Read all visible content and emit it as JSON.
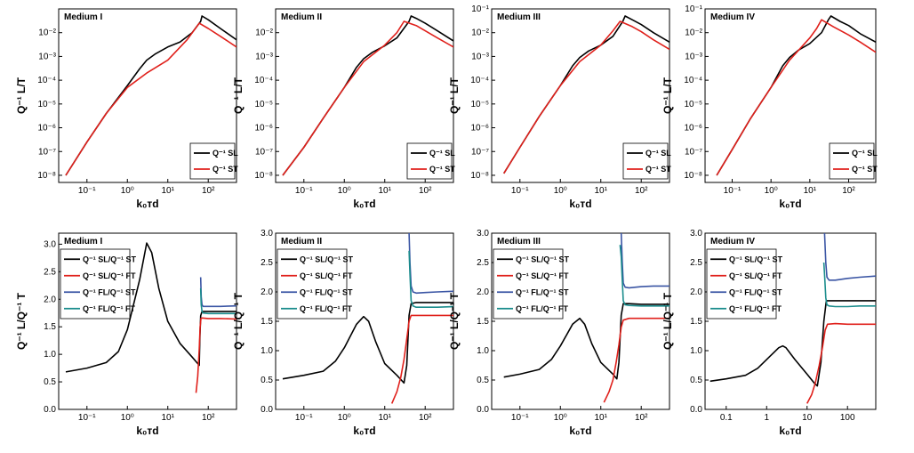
{
  "colors": {
    "black": "#000000",
    "red": "#e0201b",
    "blue": "#3a55a4",
    "teal": "#1a8c8c"
  },
  "chart_data": [
    {
      "type": "line",
      "title": "Medium I",
      "xlabel": "k₀ᴛd",
      "ylabel": "Q⁻¹ L/T",
      "xscale": "log",
      "yscale": "log",
      "xlim": [
        0.02,
        500
      ],
      "ylim": [
        5e-09,
        0.1
      ],
      "xticks": [
        "10⁻¹",
        "10⁰",
        "10¹",
        "10²"
      ],
      "yticks": [
        "10⁻⁸",
        "10⁻⁷",
        "10⁻⁶",
        "10⁻⁵",
        "10⁻⁴",
        "10⁻³",
        "10⁻²"
      ],
      "legend": {
        "position": "bottom-right",
        "labels": [
          "Q⁻¹ SL",
          "Q⁻¹ ST"
        ]
      },
      "series": [
        {
          "name": "Q⁻¹ SL",
          "color": "black",
          "x": [
            0.03,
            0.1,
            0.3,
            1,
            2,
            3,
            5,
            10,
            20,
            40,
            65,
            70,
            100,
            200,
            500
          ],
          "y": [
            1e-08,
            2.5e-07,
            4e-06,
            6e-05,
            0.0003,
            0.0007,
            0.0013,
            0.0025,
            0.004,
            0.01,
            0.03,
            0.05,
            0.035,
            0.015,
            0.005
          ]
        },
        {
          "name": "Q⁻¹ ST",
          "color": "red",
          "x": [
            0.03,
            0.1,
            0.3,
            1,
            3,
            10,
            30,
            60,
            100,
            200,
            500
          ],
          "y": [
            1e-08,
            2.5e-07,
            4e-06,
            5e-05,
            0.0002,
            0.0007,
            0.005,
            0.025,
            0.015,
            0.007,
            0.0025
          ]
        }
      ]
    },
    {
      "type": "line",
      "title": "Medium II",
      "xlabel": "k₀ᴛd",
      "ylabel": "Q⁻¹ L/T",
      "xscale": "log",
      "yscale": "log",
      "xlim": [
        0.02,
        500
      ],
      "ylim": [
        5e-09,
        0.1
      ],
      "xticks": [
        "10⁻¹",
        "10⁰",
        "10¹",
        "10²"
      ],
      "yticks": [
        "10⁻⁸",
        "10⁻⁷",
        "10⁻⁶",
        "10⁻⁵",
        "10⁻⁴",
        "10⁻³",
        "10⁻²"
      ],
      "legend": {
        "position": "bottom-right",
        "labels": [
          "Q⁻¹ SL",
          "Q⁻¹ ST"
        ]
      },
      "series": [
        {
          "name": "Q⁻¹ SL",
          "color": "black",
          "x": [
            0.03,
            0.1,
            0.3,
            1,
            2,
            3,
            5,
            10,
            20,
            40,
            45,
            60,
            100,
            200,
            500
          ],
          "y": [
            1e-08,
            1.5e-07,
            2.5e-06,
            5e-05,
            0.00035,
            0.0008,
            0.0015,
            0.0028,
            0.006,
            0.03,
            0.05,
            0.04,
            0.025,
            0.012,
            0.0045
          ]
        },
        {
          "name": "Q⁻¹ ST",
          "color": "red",
          "x": [
            0.03,
            0.1,
            0.3,
            1,
            3,
            10,
            20,
            30,
            60,
            100,
            200,
            500
          ],
          "y": [
            1e-08,
            1.5e-07,
            2.5e-06,
            5e-05,
            0.0006,
            0.003,
            0.01,
            0.03,
            0.02,
            0.012,
            0.006,
            0.0025
          ]
        }
      ]
    },
    {
      "type": "line",
      "title": "Medium III",
      "xlabel": "k₀ᴛd",
      "ylabel": "Q⁻¹ L/T",
      "xscale": "log",
      "yscale": "log",
      "xlim": [
        0.02,
        500
      ],
      "ylim": [
        5e-09,
        0.1
      ],
      "xticks": [
        "10⁻¹",
        "10⁰",
        "10¹",
        "10²"
      ],
      "yticks": [
        "10⁻⁸",
        "10⁻⁷",
        "10⁻⁶",
        "10⁻⁵",
        "10⁻⁴",
        "10⁻³",
        "10⁻²",
        "10⁻¹"
      ],
      "legend": {
        "position": "bottom-right",
        "labels": [
          "Q⁻¹ SL",
          "Q⁻¹ ST"
        ]
      },
      "series": [
        {
          "name": "Q⁻¹ SL",
          "color": "black",
          "x": [
            0.04,
            0.1,
            0.3,
            1,
            2,
            3,
            5,
            10,
            20,
            35,
            40,
            60,
            100,
            200,
            500
          ],
          "y": [
            1.2e-08,
            1.5e-07,
            3e-06,
            6e-05,
            0.0004,
            0.0009,
            0.0017,
            0.003,
            0.007,
            0.03,
            0.05,
            0.035,
            0.022,
            0.01,
            0.004
          ]
        },
        {
          "name": "Q⁻¹ ST",
          "color": "red",
          "x": [
            0.04,
            0.1,
            0.3,
            1,
            3,
            10,
            20,
            30,
            60,
            100,
            200,
            500
          ],
          "y": [
            1.2e-08,
            1.5e-07,
            3e-06,
            6e-05,
            0.0006,
            0.003,
            0.012,
            0.03,
            0.018,
            0.011,
            0.005,
            0.002
          ]
        }
      ]
    },
    {
      "type": "line",
      "title": "Medium IV",
      "xlabel": "k₀ᴛd",
      "ylabel": "Q⁻¹ L/T",
      "xscale": "log",
      "yscale": "log",
      "xlim": [
        0.02,
        500
      ],
      "ylim": [
        5e-09,
        0.1
      ],
      "xticks": [
        "10⁻¹",
        "10⁰",
        "10¹",
        "10²"
      ],
      "yticks": [
        "10⁻⁸",
        "10⁻⁷",
        "10⁻⁶",
        "10⁻⁵",
        "10⁻⁴",
        "10⁻³",
        "10⁻²",
        "10⁻¹"
      ],
      "legend": {
        "position": "bottom-right",
        "labels": [
          "Q⁻¹ SL",
          "Q⁻¹ ST"
        ]
      },
      "series": [
        {
          "name": "Q⁻¹ SL",
          "color": "black",
          "x": [
            0.04,
            0.1,
            0.3,
            1,
            2,
            3,
            5,
            10,
            20,
            30,
            35,
            60,
            100,
            200,
            500
          ],
          "y": [
            1e-08,
            1.2e-07,
            2.5e-06,
            5e-05,
            0.0004,
            0.0009,
            0.0018,
            0.0035,
            0.01,
            0.035,
            0.05,
            0.03,
            0.02,
            0.009,
            0.004
          ]
        },
        {
          "name": "Q⁻¹ ST",
          "color": "red",
          "x": [
            0.04,
            0.1,
            0.3,
            1,
            3,
            10,
            15,
            20,
            40,
            100,
            200,
            500
          ],
          "y": [
            1e-08,
            1.2e-07,
            2.5e-06,
            5e-05,
            0.0007,
            0.006,
            0.015,
            0.035,
            0.018,
            0.008,
            0.004,
            0.0015
          ]
        }
      ]
    },
    {
      "type": "line",
      "title": "Medium I",
      "xlabel": "k₀ᴛd",
      "ylabel": "Q⁻¹ L/Q⁻¹ T",
      "xscale": "log",
      "xlim": [
        0.02,
        500
      ],
      "ylim": [
        0,
        3.2
      ],
      "xticks": [
        "10⁻¹",
        "10⁰",
        "10¹",
        "10²"
      ],
      "yticks": [
        "0.0",
        "0.5",
        "1.0",
        "1.5",
        "2.0",
        "2.5",
        "3.0"
      ],
      "legend": {
        "position": "top-left",
        "labels": [
          "Q⁻¹ SL/Q⁻¹ ST",
          "Q⁻¹ SL/Q⁻¹ FT",
          "Q⁻¹ FL/Q⁻¹ ST",
          "Q⁻¹ FL/Q⁻¹ FT"
        ]
      },
      "series": [
        {
          "name": "Q⁻¹ SL/Q⁻¹ ST",
          "color": "black",
          "x": [
            0.03,
            0.1,
            0.3,
            0.6,
            1,
            2,
            3,
            4,
            6,
            10,
            20,
            40,
            60,
            62,
            65,
            70,
            100,
            200,
            500
          ],
          "y": [
            0.68,
            0.75,
            0.85,
            1.05,
            1.45,
            2.35,
            3.02,
            2.85,
            2.2,
            1.6,
            1.2,
            0.95,
            0.8,
            1.3,
            1.7,
            1.78,
            1.78,
            1.78,
            1.78
          ]
        },
        {
          "name": "Q⁻¹ SL/Q⁻¹ FT",
          "color": "red",
          "x": [
            50,
            55,
            60,
            63,
            66,
            70,
            100,
            200,
            500
          ],
          "y": [
            0.3,
            0.6,
            1.1,
            1.5,
            1.65,
            1.66,
            1.65,
            1.65,
            1.64
          ]
        },
        {
          "name": "Q⁻¹ FL/Q⁻¹ ST",
          "color": "blue",
          "x": [
            65,
            67,
            70,
            75,
            100,
            200,
            500
          ],
          "y": [
            2.4,
            2.05,
            1.9,
            1.87,
            1.87,
            1.87,
            1.88
          ]
        },
        {
          "name": "Q⁻¹ FL/Q⁻¹ FT",
          "color": "teal",
          "x": [
            65,
            67,
            70,
            75,
            100,
            200,
            500
          ],
          "y": [
            2.2,
            1.9,
            1.78,
            1.75,
            1.74,
            1.74,
            1.74
          ]
        }
      ]
    },
    {
      "type": "line",
      "title": "Medium II",
      "xlabel": "k₀ᴛd",
      "ylabel": "Q⁻¹ L/Q⁻¹ T",
      "xscale": "log",
      "xlim": [
        0.02,
        500
      ],
      "ylim": [
        0,
        3.0
      ],
      "xticks": [
        "10⁻¹",
        "10⁰",
        "10¹",
        "10²"
      ],
      "yticks": [
        "0.0",
        "0.5",
        "1.0",
        "1.5",
        "2.0",
        "2.5",
        "3.0"
      ],
      "legend": {
        "position": "top-left",
        "labels": [
          "Q⁻¹ SL/Q⁻¹ ST",
          "Q⁻¹ SL/Q⁻¹ FT",
          "Q⁻¹ FL/Q⁻¹ ST",
          "Q⁻¹ FL/Q⁻¹ FT"
        ]
      },
      "series": [
        {
          "name": "Q⁻¹ SL/Q⁻¹ ST",
          "color": "black",
          "x": [
            0.03,
            0.1,
            0.3,
            0.6,
            1,
            2,
            3,
            4,
            6,
            10,
            20,
            30,
            35,
            40,
            45,
            60,
            100,
            200,
            500
          ],
          "y": [
            0.52,
            0.58,
            0.65,
            0.82,
            1.05,
            1.45,
            1.58,
            1.5,
            1.15,
            0.78,
            0.58,
            0.45,
            0.75,
            1.6,
            1.8,
            1.82,
            1.82,
            1.82,
            1.82
          ]
        },
        {
          "name": "Q⁻¹ SL/Q⁻¹ FT",
          "color": "red",
          "x": [
            15,
            20,
            25,
            30,
            35,
            40,
            45,
            60,
            100,
            200,
            500
          ],
          "y": [
            0.1,
            0.3,
            0.55,
            0.85,
            1.2,
            1.5,
            1.6,
            1.6,
            1.6,
            1.6,
            1.6
          ]
        },
        {
          "name": "Q⁻¹ FL/Q⁻¹ ST",
          "color": "blue",
          "x": [
            40,
            42,
            45,
            50,
            60,
            100,
            200,
            500
          ],
          "y": [
            3.0,
            2.5,
            2.1,
            2.0,
            1.98,
            1.99,
            2.0,
            2.01
          ]
        },
        {
          "name": "Q⁻¹ FL/Q⁻¹ FT",
          "color": "teal",
          "x": [
            40,
            42,
            45,
            50,
            60,
            100,
            200,
            500
          ],
          "y": [
            2.7,
            2.3,
            1.85,
            1.76,
            1.74,
            1.74,
            1.74,
            1.75
          ]
        }
      ]
    },
    {
      "type": "line",
      "title": "Medium III",
      "xlabel": "k₀ᴛd",
      "ylabel": "Q⁻¹ L/Q⁻¹ T",
      "xscale": "log",
      "xlim": [
        0.02,
        500
      ],
      "ylim": [
        0,
        3.0
      ],
      "xticks": [
        "10⁻¹",
        "10⁰",
        "10¹",
        "10²"
      ],
      "yticks": [
        "0.0",
        "0.5",
        "1.0",
        "1.5",
        "2.0",
        "2.5",
        "3.0"
      ],
      "legend": {
        "position": "top-left",
        "labels": [
          "Q⁻¹ SL/Q⁻¹ ST",
          "Q⁻¹ SL/Q⁻¹ FT",
          "Q⁻¹ FL/Q⁻¹ ST",
          "Q⁻¹ FL/Q⁻¹ FT"
        ]
      },
      "series": [
        {
          "name": "Q⁻¹ SL/Q⁻¹ ST",
          "color": "black",
          "x": [
            0.04,
            0.1,
            0.3,
            0.6,
            1,
            2,
            3,
            4,
            6,
            10,
            20,
            25,
            28,
            32,
            36,
            50,
            100,
            200,
            500
          ],
          "y": [
            0.55,
            0.6,
            0.68,
            0.85,
            1.08,
            1.45,
            1.55,
            1.45,
            1.12,
            0.8,
            0.6,
            0.52,
            0.8,
            1.6,
            1.8,
            1.8,
            1.79,
            1.79,
            1.79
          ]
        },
        {
          "name": "Q⁻¹ SL/Q⁻¹ FT",
          "color": "red",
          "x": [
            12,
            16,
            20,
            24,
            28,
            32,
            36,
            50,
            100,
            200,
            500
          ],
          "y": [
            0.12,
            0.3,
            0.5,
            0.8,
            1.1,
            1.4,
            1.52,
            1.55,
            1.55,
            1.55,
            1.55
          ]
        },
        {
          "name": "Q⁻¹ FL/Q⁻¹ ST",
          "color": "blue",
          "x": [
            32,
            34,
            36,
            40,
            50,
            100,
            200,
            500
          ],
          "y": [
            3.0,
            2.5,
            2.15,
            2.08,
            2.07,
            2.09,
            2.1,
            2.1
          ]
        },
        {
          "name": "Q⁻¹ FL/Q⁻¹ FT",
          "color": "teal",
          "x": [
            30,
            32,
            34,
            36,
            40,
            50,
            100,
            200,
            500
          ],
          "y": [
            2.8,
            2.6,
            2.2,
            1.85,
            1.78,
            1.77,
            1.76,
            1.76,
            1.76
          ]
        }
      ]
    },
    {
      "type": "line",
      "title": "Medium IV",
      "xlabel": "k₀ᴛd",
      "ylabel": "Q⁻¹ L/Q⁻¹ T",
      "xscale": "log",
      "xlim": [
        0.03,
        500
      ],
      "ylim": [
        0,
        3.0
      ],
      "xticks": [
        "0.1",
        "1",
        "10",
        "100"
      ],
      "yticks": [
        "0.0",
        "0.5",
        "1.0",
        "1.5",
        "2.0",
        "2.5",
        "3.0"
      ],
      "legend": {
        "position": "top-left",
        "labels": [
          "Q⁻¹ SL/Q⁻¹ ST",
          "Q⁻¹ SL/Q⁻¹ FT",
          "Q⁻¹ FL/Q⁻¹ ST",
          "Q⁻¹ FL/Q⁻¹ FT"
        ]
      },
      "series": [
        {
          "name": "Q⁻¹ SL/Q⁻¹ ST",
          "color": "black",
          "x": [
            0.04,
            0.1,
            0.3,
            0.6,
            1,
            2,
            2.5,
            3,
            5,
            10,
            15,
            18,
            22,
            26,
            30,
            50,
            100,
            200,
            500
          ],
          "y": [
            0.48,
            0.52,
            0.58,
            0.7,
            0.85,
            1.05,
            1.08,
            1.05,
            0.85,
            0.6,
            0.45,
            0.4,
            0.8,
            1.5,
            1.85,
            1.85,
            1.85,
            1.85,
            1.85
          ]
        },
        {
          "name": "Q⁻¹ SL/Q⁻¹ FT",
          "color": "red",
          "x": [
            10,
            13,
            16,
            20,
            24,
            28,
            32,
            50,
            100,
            200,
            500
          ],
          "y": [
            0.1,
            0.25,
            0.45,
            0.75,
            1.05,
            1.35,
            1.45,
            1.46,
            1.45,
            1.45,
            1.45
          ]
        },
        {
          "name": "Q⁻¹ FL/Q⁻¹ ST",
          "color": "blue",
          "x": [
            27,
            29,
            31,
            35,
            50,
            100,
            200,
            500
          ],
          "y": [
            3.0,
            2.5,
            2.25,
            2.2,
            2.2,
            2.23,
            2.25,
            2.27
          ]
        },
        {
          "name": "Q⁻¹ FL/Q⁻¹ FT",
          "color": "teal",
          "x": [
            26,
            27,
            29,
            31,
            35,
            50,
            100,
            200,
            500
          ],
          "y": [
            2.5,
            2.3,
            1.9,
            1.78,
            1.76,
            1.75,
            1.75,
            1.76,
            1.76
          ]
        }
      ]
    }
  ]
}
